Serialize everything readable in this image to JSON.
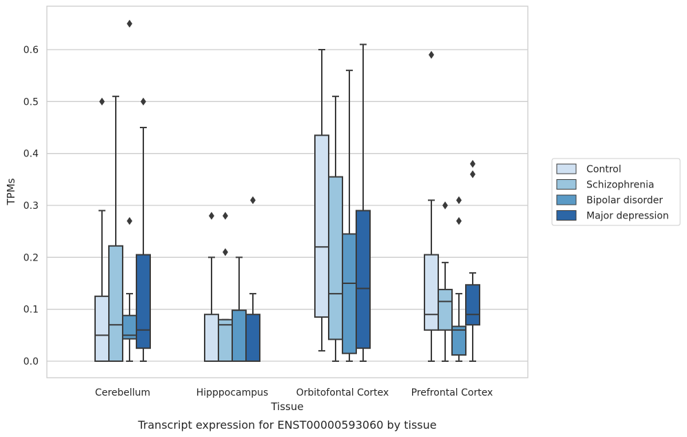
{
  "caption": "Transcript expression for ENST00000593060 by tissue",
  "chart_data": {
    "type": "box",
    "xlabel": "Tissue",
    "ylabel": "TPMs",
    "ylim": [
      -0.03,
      0.68
    ],
    "yticks": [
      0.0,
      0.1,
      0.2,
      0.3,
      0.4,
      0.5,
      0.6
    ],
    "ytick_labels": [
      "0.0",
      "0.1",
      "0.2",
      "0.3",
      "0.4",
      "0.5",
      "0.6"
    ],
    "grid": "horizontal",
    "legend_position": "right",
    "categories": [
      "Cerebellum",
      "Hipppocampus",
      "Orbitofontal Cortex",
      "Prefrontal Cortex"
    ],
    "series": [
      {
        "name": "Control",
        "color": "#d0e1f2",
        "boxes": [
          {
            "whislo": 0.0,
            "q1": 0.0,
            "med": 0.05,
            "q3": 0.125,
            "whishi": 0.29,
            "fliers": [
              0.5
            ]
          },
          {
            "whislo": 0.0,
            "q1": 0.0,
            "med": 0.0,
            "q3": 0.09,
            "whishi": 0.2,
            "fliers": [
              0.28
            ]
          },
          {
            "whislo": 0.02,
            "q1": 0.085,
            "med": 0.22,
            "q3": 0.435,
            "whishi": 0.6,
            "fliers": []
          },
          {
            "whislo": 0.0,
            "q1": 0.06,
            "med": 0.09,
            "q3": 0.205,
            "whishi": 0.31,
            "fliers": [
              0.59
            ]
          }
        ]
      },
      {
        "name": "Schizophrenia",
        "color": "#9ac5de",
        "boxes": [
          {
            "whislo": 0.0,
            "q1": 0.0,
            "med": 0.07,
            "q3": 0.222,
            "whishi": 0.51,
            "fliers": []
          },
          {
            "whislo": 0.0,
            "q1": 0.0,
            "med": 0.07,
            "q3": 0.08,
            "whishi": 0.08,
            "fliers": [
              0.21,
              0.28
            ]
          },
          {
            "whislo": 0.0,
            "q1": 0.042,
            "med": 0.13,
            "q3": 0.355,
            "whishi": 0.51,
            "fliers": []
          },
          {
            "whislo": 0.0,
            "q1": 0.06,
            "med": 0.115,
            "q3": 0.138,
            "whishi": 0.19,
            "fliers": [
              0.3
            ]
          }
        ]
      },
      {
        "name": "Bipolar disorder",
        "color": "#5a9ac6",
        "boxes": [
          {
            "whislo": 0.0,
            "q1": 0.043,
            "med": 0.05,
            "q3": 0.088,
            "whishi": 0.13,
            "fliers": [
              0.27,
              0.65
            ]
          },
          {
            "whislo": 0.0,
            "q1": 0.0,
            "med": 0.0,
            "q3": 0.098,
            "whishi": 0.2,
            "fliers": []
          },
          {
            "whislo": 0.0,
            "q1": 0.015,
            "med": 0.15,
            "q3": 0.245,
            "whishi": 0.56,
            "fliers": []
          },
          {
            "whislo": 0.0,
            "q1": 0.012,
            "med": 0.06,
            "q3": 0.067,
            "whishi": 0.13,
            "fliers": [
              0.27,
              0.31
            ]
          }
        ]
      },
      {
        "name": "Major depression",
        "color": "#2c66a6",
        "boxes": [
          {
            "whislo": 0.0,
            "q1": 0.025,
            "med": 0.06,
            "q3": 0.205,
            "whishi": 0.45,
            "fliers": [
              0.5
            ]
          },
          {
            "whislo": 0.0,
            "q1": 0.0,
            "med": 0.0,
            "q3": 0.09,
            "whishi": 0.13,
            "fliers": [
              0.31
            ]
          },
          {
            "whislo": 0.0,
            "q1": 0.025,
            "med": 0.14,
            "q3": 0.29,
            "whishi": 0.61,
            "fliers": []
          },
          {
            "whislo": 0.0,
            "q1": 0.07,
            "med": 0.09,
            "q3": 0.147,
            "whishi": 0.17,
            "fliers": [
              0.36,
              0.38
            ]
          }
        ]
      }
    ]
  }
}
